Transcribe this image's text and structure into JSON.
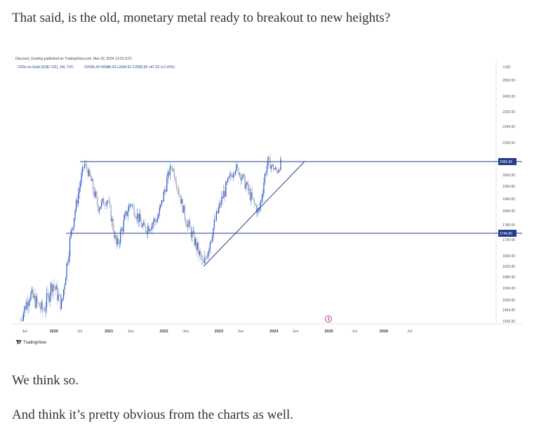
{
  "article": {
    "p1": "That said, is the old, monetary metal ready to breakout to new heights?",
    "p2": "We think so.",
    "p3": "And think it’s pretty obvious from the charts as well."
  },
  "chart_data": {
    "type": "candlestick",
    "publisher_line": "Discount_Gosling published on TradingView.com, Mar 03, 2024 13:23 UTC",
    "symbol_line": "CFDs on Gold (US$ / OZ), 1W, TVC",
    "ohlc_line": "O2035.43  H2088.33  L2024.61  C2082.65  +47.22 (+2.32%)",
    "currency": "USD",
    "y_ticks": [
      "2500.00",
      "2400.00",
      "2320.00",
      "2240.00",
      "2160.00",
      "2082.65",
      "2000.00",
      "1950.00",
      "1900.00",
      "1840.00",
      "1780.00",
      "1746.90",
      "1720.00",
      "1660.00",
      "1620.00",
      "1580.00",
      "1540.00",
      "1500.00",
      "1464.00",
      "1426.50"
    ],
    "price_badges": [
      {
        "label": "2082.65",
        "value": 2082.65
      },
      {
        "label": "1746.90",
        "value": 1746.9
      }
    ],
    "x_ticks": [
      "Jul",
      "2020",
      "Jul",
      "2021",
      "Jun",
      "2022",
      "Jun",
      "2023",
      "Jun",
      "2024",
      "Jun",
      "2025",
      "Jul",
      "2026",
      "Jul"
    ],
    "x_year_labels": [
      "2020",
      "2021",
      "2022",
      "2023",
      "2024",
      "2025",
      "2026"
    ],
    "horizontal_levels": [
      2082.65,
      1746.9
    ],
    "trendline": {
      "from": {
        "date": "2022-10",
        "price": 1620
      },
      "to": {
        "date": "2024-08",
        "price": 2082.65
      }
    },
    "approx_path": [
      {
        "t": "2019-06",
        "p": 1426
      },
      {
        "t": "2019-08",
        "p": 1520
      },
      {
        "t": "2019-11",
        "p": 1460
      },
      {
        "t": "2020-01",
        "p": 1560
      },
      {
        "t": "2020-03",
        "p": 1480
      },
      {
        "t": "2020-05",
        "p": 1740
      },
      {
        "t": "2020-08",
        "p": 2070
      },
      {
        "t": "2020-11",
        "p": 1860
      },
      {
        "t": "2021-01",
        "p": 1900
      },
      {
        "t": "2021-03",
        "p": 1690
      },
      {
        "t": "2021-06",
        "p": 1880
      },
      {
        "t": "2021-09",
        "p": 1760
      },
      {
        "t": "2021-12",
        "p": 1810
      },
      {
        "t": "2022-03",
        "p": 2060
      },
      {
        "t": "2022-06",
        "p": 1810
      },
      {
        "t": "2022-10",
        "p": 1620
      },
      {
        "t": "2023-02",
        "p": 1900
      },
      {
        "t": "2023-05",
        "p": 2050
      },
      {
        "t": "2023-08",
        "p": 1920
      },
      {
        "t": "2023-10",
        "p": 1830
      },
      {
        "t": "2023-12",
        "p": 2080
      },
      {
        "t": "2024-02",
        "p": 2020
      },
      {
        "t": "2024-03",
        "p": 2082
      }
    ],
    "watermark": "TradingView"
  }
}
